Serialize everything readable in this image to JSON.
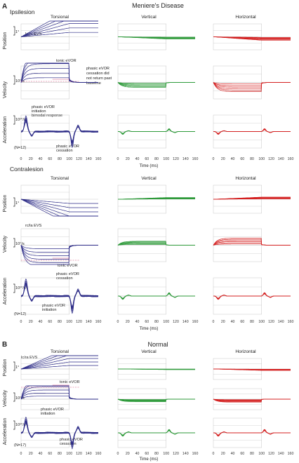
{
  "panels": [
    {
      "letter": "A",
      "title": "Meniere's Disease",
      "sections": [
        {
          "label": "Ipsilesion",
          "columns": [
            "Torsional",
            "Vertical",
            "Horizontal"
          ],
          "rows": [
            "Position",
            "Velocity",
            "Acceleration"
          ],
          "scales": [
            "1°",
            "10°/s",
            "10³°/s²"
          ],
          "annotations": [
            "lc/ra EVS",
            "tonic eVOR",
            "phasic eVOR",
            "cessation did",
            "not return past",
            "baseline",
            "phasic eVOR",
            "initiation",
            "bimodal response",
            "(N=12)",
            "phasic eVOR",
            "cessation"
          ],
          "xlabel": "Time (ms)"
        },
        {
          "label": "Contralesion",
          "columns": [
            "Torsional",
            "Vertical",
            "Horizontal"
          ],
          "rows": [
            "Position",
            "Velocity",
            "Acceleration"
          ],
          "scales": [
            "1°",
            "10°/s",
            "10³°/s²"
          ],
          "annotations": [
            "rc/la EVS",
            "tonic eVOR",
            "phasic eVOR",
            "cessation",
            "(N=12)",
            "phasic eVOR",
            "initiation"
          ],
          "xlabel": "Time (ms)"
        }
      ]
    },
    {
      "letter": "B",
      "title": "Normal",
      "sections": [
        {
          "label": "",
          "columns": [
            "Torsional",
            "Vertical",
            "Horizontal"
          ],
          "rows": [
            "Position",
            "Velocity",
            "Acceleration"
          ],
          "scales": [
            "1°",
            "10°/s",
            "10³°/s²"
          ],
          "annotations": [
            "lc/ra EVS",
            "tonic eVOR",
            "phasic eVOR",
            "initiation",
            "(N=17)",
            "phasic eVOR",
            "cessation"
          ],
          "xlabel": "Time (ms)"
        }
      ]
    }
  ],
  "colors": {
    "torsional": "#2b2a86",
    "vertical": "#2e9a3a",
    "horizontal": "#d42020",
    "grid": "#b9b9b9",
    "tonic_marker": "#d4507a"
  },
  "chart_data": {
    "type": "line",
    "xlabel": "Time (ms)",
    "x_ticks": [
      0,
      20,
      40,
      60,
      80,
      100,
      120,
      140,
      160
    ],
    "xlim": [
      0,
      160
    ],
    "stimulus_window_ms": [
      0,
      100
    ],
    "traces_per_plot": 6,
    "series": [
      {
        "name": "Torsional",
        "color": "#2b2a86"
      },
      {
        "name": "Vertical",
        "color": "#2e9a3a"
      },
      {
        "name": "Horizontal",
        "color": "#d42020"
      }
    ]
  }
}
